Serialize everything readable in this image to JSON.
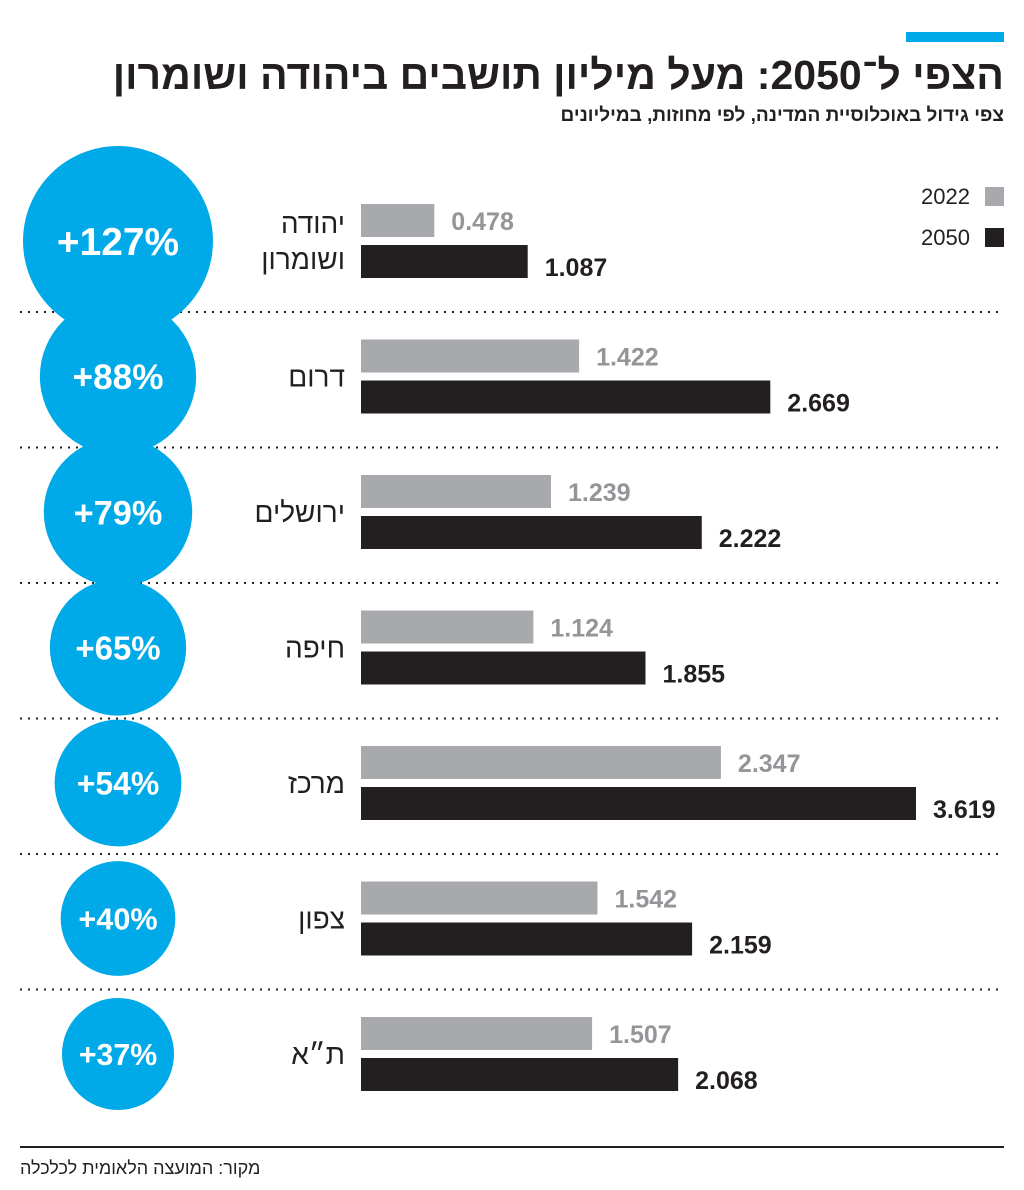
{
  "header": {
    "title": "הצפי ל־2050: מעל מיליון תושבים ביהודה ושומרון",
    "subtitle": "צפי גידול באוכלוסיית המדינה, לפי מחוזות, במיליונים"
  },
  "colors": {
    "accent": "#00a9e7",
    "bar_2022": "#a7a9ac",
    "bar_2050": "#231f20",
    "value_2022": "#939598",
    "value_2050": "#231f20",
    "separator": "#231f20"
  },
  "source": "מקור: המועצה הלאומית לכלכלה",
  "chart_data": {
    "type": "bar",
    "orientation": "horizontal",
    "title": "הצפי ל־2050: מעל מיליון תושבים ביהודה ושומרון",
    "subtitle": "צפי גידול באוכלוסיית המדינה, לפי מחוזות, במיליונים",
    "unit": "millions",
    "legend": [
      "2022",
      "2050"
    ],
    "legend_position": "top-right",
    "categories": [
      [
        "יהודה",
        "ושומרון"
      ],
      [
        "דרום"
      ],
      [
        "ירושלים"
      ],
      [
        "חיפה"
      ],
      [
        "מרכז"
      ],
      [
        "צפון"
      ],
      [
        "ת״א"
      ]
    ],
    "series": [
      {
        "name": "2022",
        "values": [
          0.478,
          1.422,
          1.239,
          1.124,
          2.347,
          1.542,
          1.507
        ],
        "labels": [
          "0.478",
          "1.422",
          "1.239",
          "1.124",
          "2.347",
          "1.542",
          "1.507"
        ]
      },
      {
        "name": "2050",
        "values": [
          1.087,
          2.669,
          2.222,
          1.855,
          3.619,
          2.159,
          2.068
        ],
        "labels": [
          "1.087",
          "2.669",
          "2.222",
          "1.855",
          "3.619",
          "2.159",
          "2.068"
        ]
      }
    ],
    "growth": [
      "+127%",
      "+88%",
      "+79%",
      "+65%",
      "+54%",
      "+40%",
      "+37%"
    ],
    "growth_values": [
      127,
      88,
      79,
      65,
      54,
      40,
      37
    ],
    "xlim": [
      0,
      3.619
    ],
    "grid": false
  }
}
